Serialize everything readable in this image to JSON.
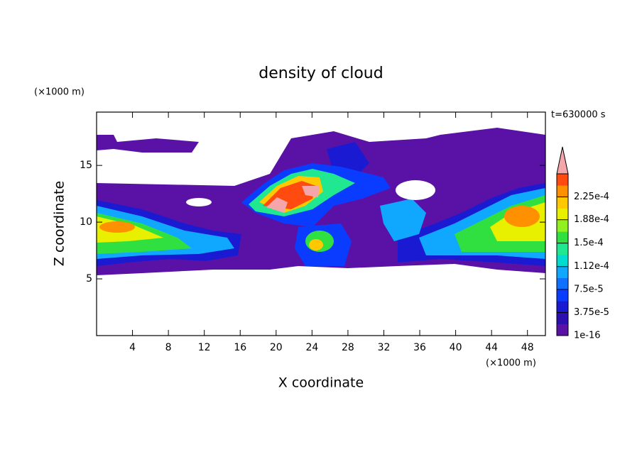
{
  "chart_data": {
    "type": "contour",
    "title": "density of cloud",
    "x_label": "X coordinate",
    "y_label": "Z coordinate",
    "x_unit": "(×1000 m)",
    "y_unit": "(×1000 m)",
    "annotation": "t=630000 s",
    "xlim": [
      0,
      50
    ],
    "ylim": [
      0,
      19.7
    ],
    "xticks": [
      4,
      8,
      12,
      16,
      20,
      24,
      28,
      32,
      36,
      40,
      44,
      48
    ],
    "yticks": [
      5,
      10,
      15
    ],
    "colorbar": {
      "lim": [
        0,
        0.0002625
      ],
      "ticks": [
        {
          "value": 1e-16,
          "label": "1e-16"
        },
        {
          "value": 3.75e-05,
          "label": "3.75e-5"
        },
        {
          "value": 7.5e-05,
          "label": "7.5e-5"
        },
        {
          "value": 0.000112,
          "label": "1.12e-4"
        },
        {
          "value": 0.00015,
          "label": "1.5e-4"
        },
        {
          "value": 0.000188,
          "label": "1.88e-4"
        },
        {
          "value": 0.000225,
          "label": "2.25e-4"
        }
      ],
      "colors": [
        "#5a12a6",
        "#2c0fb0",
        "#1a1ad2",
        "#0a3cff",
        "#1070ff",
        "#10a8ff",
        "#00dcd0",
        "#20e890",
        "#30e040",
        "#90f020",
        "#e8f000",
        "#ffc800",
        "#ff9000",
        "#ff4a10"
      ],
      "extend_color": "#f4a6aa"
    }
  }
}
